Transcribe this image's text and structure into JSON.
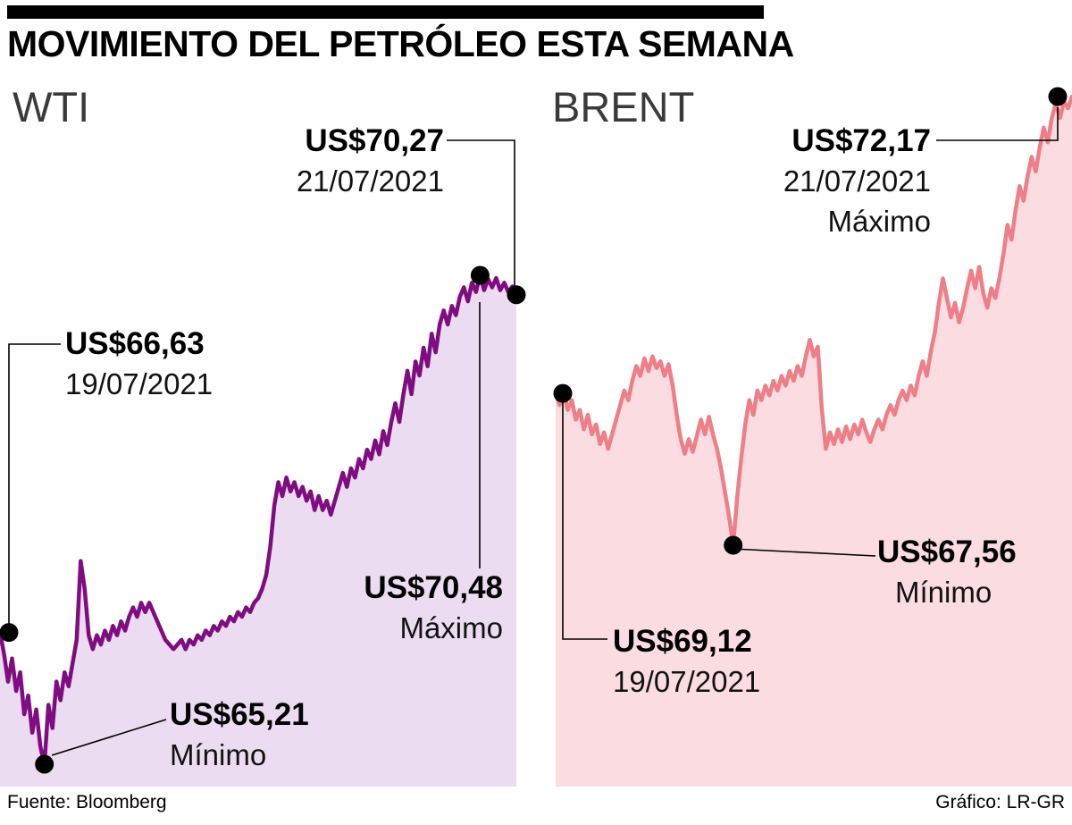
{
  "header": {
    "title": "MOVIMIENTO DEL PETRÓLEO ESTA SEMANA"
  },
  "footer": {
    "source": "Fuente: Bloomberg",
    "credit": "Gráfico: LR-GR"
  },
  "chart_data": [
    {
      "type": "area",
      "name": "WTI",
      "currency_prefix": "US$",
      "line_color": "#7f0c81",
      "fill_color": "#ecdcf1",
      "dot_color": "#000000",
      "open": 66.63,
      "close": 70.27,
      "max": 70.48,
      "min": 65.21,
      "annotations": {
        "close": {
          "value": "US$70,27",
          "date": "21/07/2021"
        },
        "open": {
          "value": "US$66,63",
          "date": "19/07/2021"
        },
        "max": {
          "value": "US$70,48",
          "label": "Máximo"
        },
        "min": {
          "value": "US$65,21",
          "label": "Mínimo"
        }
      },
      "values": [
        66.63,
        66.4,
        66.1,
        66.35,
        66.0,
        66.2,
        65.75,
        65.95,
        65.55,
        65.8,
        65.4,
        65.21,
        65.85,
        65.6,
        66.1,
        65.9,
        66.2,
        66.05,
        66.3,
        66.55,
        67.4,
        67.1,
        66.6,
        66.45,
        66.6,
        66.5,
        66.65,
        66.55,
        66.7,
        66.6,
        66.75,
        66.65,
        66.8,
        66.9,
        66.8,
        66.95,
        66.85,
        66.95,
        66.85,
        66.75,
        66.65,
        66.55,
        66.5,
        66.45,
        66.5,
        66.55,
        66.45,
        66.55,
        66.5,
        66.6,
        66.55,
        66.65,
        66.6,
        66.7,
        66.65,
        66.75,
        66.7,
        66.8,
        66.75,
        66.85,
        66.8,
        66.9,
        66.85,
        66.95,
        67.0,
        67.1,
        67.25,
        67.55,
        68.0,
        68.25,
        68.1,
        68.3,
        68.15,
        68.25,
        68.1,
        68.2,
        68.05,
        68.15,
        67.95,
        68.1,
        67.95,
        68.05,
        67.9,
        68.05,
        68.2,
        68.35,
        68.2,
        68.4,
        68.3,
        68.5,
        68.4,
        68.6,
        68.5,
        68.7,
        68.55,
        68.8,
        68.65,
        68.9,
        69.1,
        68.9,
        69.2,
        69.45,
        69.2,
        69.55,
        69.4,
        69.7,
        69.5,
        69.85,
        69.65,
        69.95,
        70.1,
        69.95,
        70.15,
        70.05,
        70.25,
        70.35,
        70.2,
        70.4,
        70.3,
        70.48,
        70.32,
        70.44,
        70.35,
        70.45,
        70.32,
        70.4,
        70.3,
        70.36,
        70.27
      ]
    },
    {
      "type": "area",
      "name": "BRENT",
      "currency_prefix": "US$",
      "line_color": "#ee7e87",
      "fill_color": "#fbdce0",
      "dot_color": "#000000",
      "open": 69.12,
      "close": 72.17,
      "max": 72.17,
      "min": 67.56,
      "annotations": {
        "max": {
          "value": "US$72,17",
          "date": "21/07/2021",
          "label": "Máximo"
        },
        "min": {
          "value": "US$67,56",
          "label": "Mínimo"
        },
        "open": {
          "value": "US$69,12",
          "date": "19/07/2021"
        }
      },
      "values": [
        69.12,
        69.0,
        69.15,
        68.95,
        69.05,
        68.85,
        68.95,
        68.75,
        68.9,
        68.7,
        68.8,
        68.6,
        68.72,
        68.55,
        68.7,
        68.85,
        69.0,
        69.15,
        69.05,
        69.25,
        69.4,
        69.3,
        69.48,
        69.35,
        69.5,
        69.38,
        69.45,
        69.3,
        69.42,
        69.2,
        68.9,
        68.65,
        68.5,
        68.65,
        68.52,
        68.68,
        68.85,
        68.7,
        68.88,
        68.7,
        68.55,
        68.35,
        68.1,
        67.85,
        67.56,
        68.05,
        68.45,
        68.8,
        69.05,
        68.9,
        69.15,
        69.05,
        69.2,
        69.1,
        69.25,
        69.15,
        69.3,
        69.2,
        69.35,
        69.25,
        69.4,
        69.3,
        69.5,
        69.67,
        69.5,
        69.6,
        68.95,
        68.55,
        68.72,
        68.6,
        68.75,
        68.62,
        68.78,
        68.65,
        68.8,
        68.7,
        68.85,
        68.72,
        68.62,
        68.75,
        68.85,
        68.75,
        68.9,
        69.0,
        68.9,
        69.05,
        69.15,
        69.05,
        69.2,
        69.1,
        69.3,
        69.45,
        69.3,
        69.55,
        69.75,
        70.05,
        70.3,
        70.1,
        69.9,
        70.05,
        69.85,
        70.0,
        70.2,
        70.38,
        70.2,
        70.42,
        70.15,
        70.0,
        70.2,
        70.1,
        70.3,
        70.55,
        70.85,
        70.7,
        71.0,
        71.25,
        71.1,
        71.35,
        71.55,
        71.4,
        71.65,
        71.85,
        71.7,
        71.95,
        72.1,
        71.95,
        72.12,
        72.05,
        72.17
      ]
    }
  ]
}
